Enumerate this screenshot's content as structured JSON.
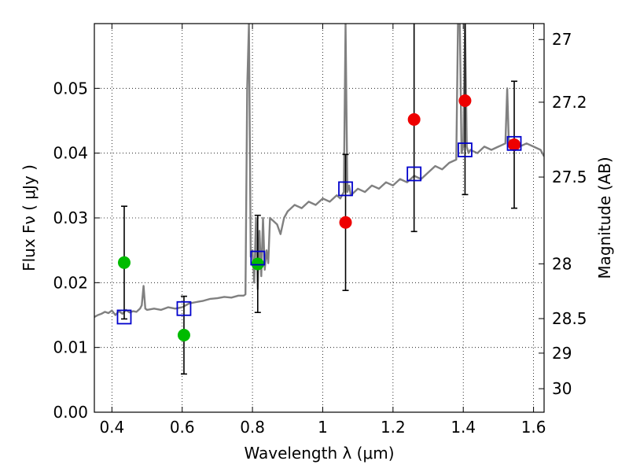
{
  "chart_data": {
    "type": "scatter",
    "title": "",
    "xlabel": "Wavelength  λ (μm)",
    "ylabel_left": "Flux  Fν  ( μJy )",
    "ylabel_right": "Magnitude (AB)",
    "xlim": [
      0.35,
      1.63
    ],
    "ylim": [
      0.0,
      0.06
    ],
    "grid": true,
    "grid_style": "dotted",
    "x_ticks": [
      0.4,
      0.6,
      0.8,
      1.0,
      1.2,
      1.4,
      1.6
    ],
    "x_tick_labels": [
      "0.4",
      "0.6",
      "0.8",
      "1",
      "1.2",
      "1.4",
      "1.6"
    ],
    "y_ticks": [
      0.0,
      0.01,
      0.02,
      0.03,
      0.04,
      0.05
    ],
    "y_tick_labels": [
      "0.00",
      "0.01",
      "0.02",
      "0.03",
      "0.04",
      "0.05"
    ],
    "right_ticks": [
      {
        "label": "27",
        "mag": 27.0
      },
      {
        "label": "27.2",
        "mag": 27.2
      },
      {
        "label": "27.5",
        "mag": 27.5
      },
      {
        "label": "28",
        "mag": 28.0
      },
      {
        "label": "28.5",
        "mag": 28.5
      },
      {
        "label": "29",
        "mag": 29.0
      },
      {
        "label": "30",
        "mag": 30.0
      }
    ],
    "colors": {
      "spectrum": "#808080",
      "model_box": "#0000cc",
      "green_point": "#00bb00",
      "red_point": "#ee0000",
      "error_bar": "#000000"
    },
    "spectrum": {
      "name": "",
      "x": [
        0.35,
        0.36,
        0.37,
        0.38,
        0.39,
        0.4,
        0.41,
        0.42,
        0.43,
        0.44,
        0.45,
        0.46,
        0.47,
        0.48,
        0.485,
        0.49,
        0.495,
        0.5,
        0.52,
        0.54,
        0.56,
        0.58,
        0.6,
        0.62,
        0.64,
        0.66,
        0.68,
        0.7,
        0.72,
        0.74,
        0.76,
        0.775,
        0.78,
        0.785,
        0.79,
        0.795,
        0.8,
        0.805,
        0.81,
        0.815,
        0.82,
        0.825,
        0.83,
        0.835,
        0.84,
        0.845,
        0.85,
        0.86,
        0.87,
        0.88,
        0.89,
        0.9,
        0.92,
        0.94,
        0.96,
        0.98,
        1.0,
        1.02,
        1.04,
        1.05,
        1.06,
        1.065,
        1.07,
        1.075,
        1.08,
        1.1,
        1.12,
        1.14,
        1.16,
        1.18,
        1.2,
        1.22,
        1.24,
        1.26,
        1.28,
        1.3,
        1.32,
        1.34,
        1.36,
        1.38,
        1.385,
        1.39,
        1.395,
        1.4,
        1.405,
        1.41,
        1.415,
        1.42,
        1.44,
        1.46,
        1.48,
        1.5,
        1.52,
        1.525,
        1.53,
        1.535,
        1.54,
        1.56,
        1.58,
        1.6,
        1.62,
        1.63
      ],
      "y": [
        0.0147,
        0.015,
        0.0152,
        0.0155,
        0.0153,
        0.0157,
        0.015,
        0.0156,
        0.0152,
        0.0158,
        0.0154,
        0.0156,
        0.0155,
        0.016,
        0.0165,
        0.0195,
        0.016,
        0.0158,
        0.016,
        0.0158,
        0.0162,
        0.016,
        0.0162,
        0.0168,
        0.017,
        0.0172,
        0.0175,
        0.0176,
        0.0178,
        0.0177,
        0.018,
        0.018,
        0.0182,
        0.05,
        0.06,
        0.024,
        0.025,
        0.02,
        0.03,
        0.019,
        0.028,
        0.021,
        0.03,
        0.022,
        0.025,
        0.023,
        0.03,
        0.0295,
        0.029,
        0.0275,
        0.03,
        0.031,
        0.032,
        0.0315,
        0.0325,
        0.032,
        0.033,
        0.0325,
        0.0335,
        0.033,
        0.034,
        0.06,
        0.034,
        0.035,
        0.0335,
        0.0345,
        0.034,
        0.035,
        0.0345,
        0.0355,
        0.035,
        0.036,
        0.0355,
        0.0365,
        0.036,
        0.037,
        0.038,
        0.0375,
        0.0385,
        0.039,
        0.06,
        0.06,
        0.04,
        0.041,
        0.06,
        0.041,
        0.04,
        0.0405,
        0.04,
        0.041,
        0.0405,
        0.041,
        0.0415,
        0.05,
        0.041,
        0.042,
        0.0415,
        0.041,
        0.0415,
        0.041,
        0.0405,
        0.0395
      ]
    },
    "model_boxes": {
      "name": "",
      "x": [
        0.435,
        0.605,
        0.815,
        1.065,
        1.26,
        1.405,
        1.545
      ],
      "y": [
        0.0147,
        0.016,
        0.0238,
        0.0345,
        0.0368,
        0.0405,
        0.0415
      ]
    },
    "observed_points": [
      {
        "x": 0.435,
        "y": 0.0231,
        "err": 0.0087,
        "color": "green"
      },
      {
        "x": 0.605,
        "y": 0.0119,
        "err": 0.006,
        "color": "green"
      },
      {
        "x": 0.815,
        "y": 0.0229,
        "err": 0.0075,
        "color": "green"
      },
      {
        "x": 1.065,
        "y": 0.0293,
        "err": 0.0105,
        "color": "red"
      },
      {
        "x": 1.26,
        "y": 0.0452,
        "err": 0.0173,
        "color": "red"
      },
      {
        "x": 1.405,
        "y": 0.0481,
        "err": 0.0145,
        "color": "red"
      },
      {
        "x": 1.545,
        "y": 0.0413,
        "err": 0.0098,
        "color": "red"
      }
    ]
  }
}
